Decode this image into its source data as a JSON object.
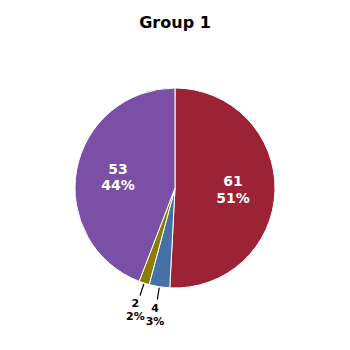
{
  "chart_data": {
    "type": "pie",
    "title": "Group 1",
    "values": [
      61,
      4,
      2,
      53
    ],
    "value_labels": [
      "61\n51%",
      "4\n3%",
      "2\n2%",
      "53\n44%"
    ],
    "colors": [
      "#9b2335",
      "#4472a8",
      "#8b7d00",
      "#7b4fa6"
    ],
    "data_labels": true
  }
}
